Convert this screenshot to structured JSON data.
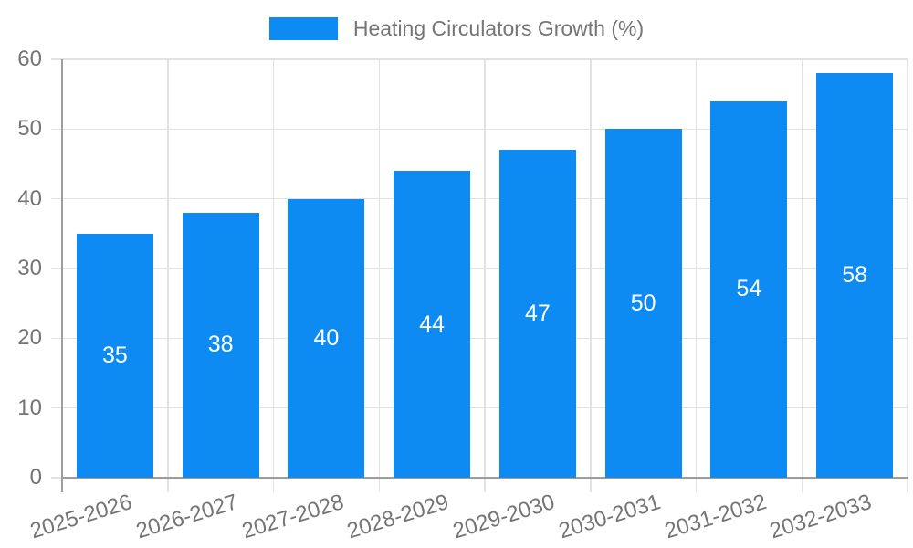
{
  "legend": {
    "label": "Heating Circulators Growth (%)"
  },
  "chart_data": {
    "type": "bar",
    "title": "Heating Circulators Growth (%)",
    "series": [
      {
        "name": "Heating Circulators Growth (%)",
        "values": [
          35,
          38,
          40,
          44,
          47,
          50,
          54,
          58
        ]
      }
    ],
    "categories": [
      "2025-2026",
      "2026-2027",
      "2027-2028",
      "2028-2029",
      "2029-2030",
      "2030-2031",
      "2031-2032",
      "2032-2033"
    ],
    "values": [
      35,
      38,
      40,
      44,
      47,
      50,
      54,
      58
    ],
    "xlabel": "",
    "ylabel": "",
    "ylim": [
      0,
      60
    ],
    "yticks": [
      0,
      10,
      20,
      30,
      40,
      50,
      60
    ],
    "grid": true,
    "legend_position": "top",
    "x_label_rotation_deg": -17,
    "colors": {
      "bar": "#0d8bf2",
      "value_label": "#ffffff",
      "axis_text": "#757575",
      "axis_line": "#9e9e9e",
      "gridline": "#e2e2e2",
      "tick": "#c9c9c9",
      "background": "#ffffff"
    }
  }
}
